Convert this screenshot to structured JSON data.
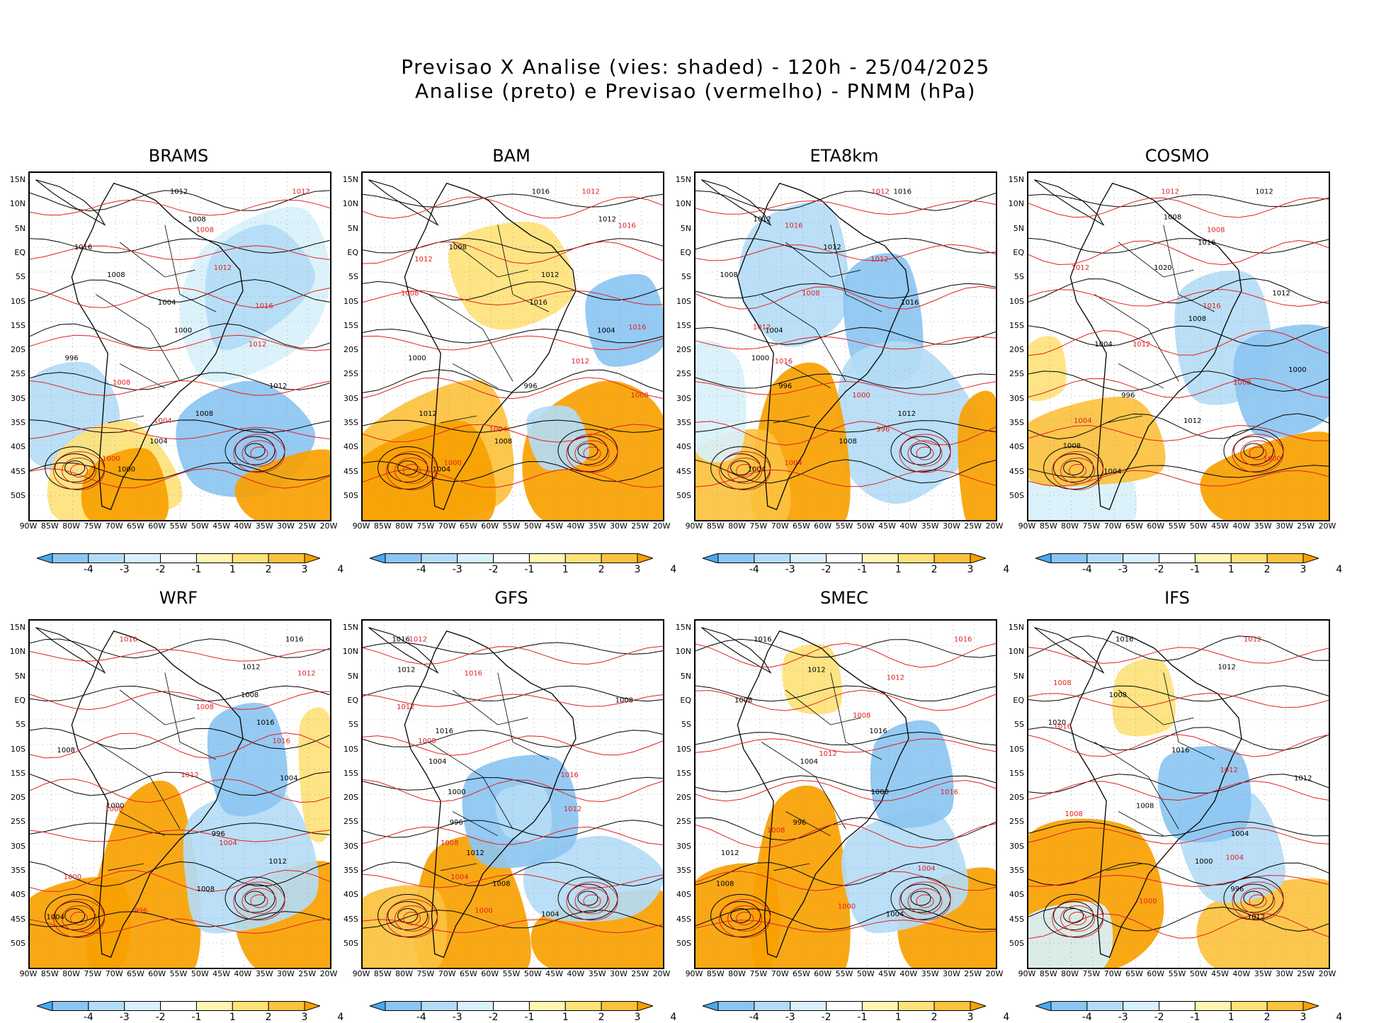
{
  "title_line1": "Previsao X Analise (vies: shaded) - 120h - 25/04/2025",
  "title_line2": "Analise (preto) e Previsao (vermelho) - PNMM (hPa)",
  "lat_labels": [
    "15N",
    "10N",
    "5N",
    "EQ",
    "5S",
    "10S",
    "15S",
    "20S",
    "25S",
    "30S",
    "35S",
    "40S",
    "45S",
    "50S"
  ],
  "lon_labels": [
    "90W",
    "85W",
    "80W",
    "75W",
    "70W",
    "65W",
    "60W",
    "55W",
    "50W",
    "45W",
    "40W",
    "35W",
    "30W",
    "25W",
    "20W"
  ],
  "colorbar": {
    "labels": [
      "-4",
      "-3",
      "-2",
      "-1",
      "1",
      "2",
      "3",
      "4"
    ],
    "colors": [
      "#4aa8ee",
      "#8cc5f2",
      "#b4dcf6",
      "#d8f1fb",
      "#ffffff",
      "#fff6b4",
      "#fee27a",
      "#fdc23e",
      "#f8a100"
    ]
  },
  "contour_colors": {
    "analysis": "#000000",
    "forecast": "#e22020"
  },
  "panels": [
    {
      "name": "BRAMS",
      "labels_black": [
        "1012",
        "1008",
        "1016",
        "1008",
        "1004",
        "1000",
        "996",
        "1012",
        "1008",
        "1004",
        "1000"
      ],
      "labels_red": [
        "1012",
        "1008",
        "1012",
        "1016",
        "1012",
        "1008",
        "1004",
        "1000"
      ]
    },
    {
      "name": "BAM",
      "labels_black": [
        "1016",
        "1012",
        "1008",
        "1012",
        "1016",
        "1004",
        "1000",
        "996",
        "1012",
        "1008",
        "1004"
      ],
      "labels_red": [
        "1012",
        "1016",
        "1012",
        "1008",
        "1016",
        "1012",
        "1008",
        "1004",
        "1000"
      ]
    },
    {
      "name": "ETA8km",
      "labels_black": [
        "1016",
        "1012",
        "1012",
        "1008",
        "1016",
        "1004",
        "1000",
        "996",
        "1012",
        "1008",
        "1004"
      ],
      "labels_red": [
        "1012",
        "1016",
        "1012",
        "1008",
        "1012",
        "1016",
        "1000",
        "996",
        "1004"
      ]
    },
    {
      "name": "COSMO",
      "labels_black": [
        "1012",
        "1008",
        "1016",
        "1020",
        "1012",
        "1008",
        "1004",
        "1000",
        "996",
        "1012",
        "1008",
        "1004"
      ],
      "labels_red": [
        "1012",
        "1008",
        "1012",
        "1016",
        "1012",
        "1008",
        "1004",
        "1000"
      ]
    },
    {
      "name": "WRF",
      "labels_black": [
        "1016",
        "1012",
        "1008",
        "1016",
        "1008",
        "1004",
        "1000",
        "996",
        "1012",
        "1008",
        "1004"
      ],
      "labels_red": [
        "1016",
        "1012",
        "1008",
        "1016",
        "1012",
        "1008",
        "1004",
        "1000",
        "996"
      ]
    },
    {
      "name": "GFS",
      "labels_black": [
        "1016",
        "1012",
        "1008",
        "1016",
        "1004",
        "1000",
        "996",
        "1012",
        "1008",
        "1004"
      ],
      "labels_red": [
        "1012",
        "1016",
        "1012",
        "1008",
        "1016",
        "1012",
        "1008",
        "1004",
        "1000"
      ]
    },
    {
      "name": "SMEC",
      "labels_black": [
        "1016",
        "1012",
        "1008",
        "1016",
        "1004",
        "1000",
        "996",
        "1012",
        "1008",
        "1004"
      ],
      "labels_red": [
        "1016",
        "1012",
        "1008",
        "1012",
        "1016",
        "1008",
        "1004",
        "1000"
      ]
    },
    {
      "name": "IFS",
      "labels_black": [
        "1016",
        "1012",
        "1008",
        "1020",
        "1016",
        "1012",
        "1008",
        "1004",
        "1000",
        "996",
        "1012"
      ],
      "labels_red": [
        "1012",
        "1008",
        "1016",
        "1012",
        "1008",
        "1004",
        "1000"
      ]
    }
  ]
}
